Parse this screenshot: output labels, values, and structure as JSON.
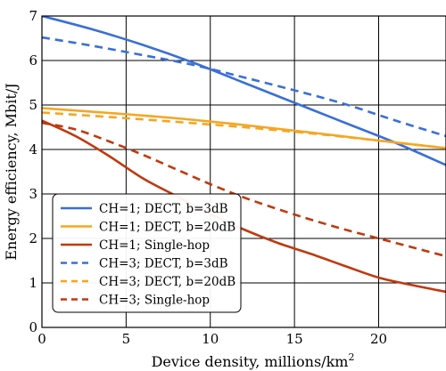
{
  "chart_data": {
    "type": "line",
    "title": "",
    "xlabel": "Device density, millions/km",
    "xlabel_sup": "2",
    "ylabel": "Energy efficiency, Mbit/J",
    "xlim": [
      0,
      24
    ],
    "ylim": [
      0,
      7
    ],
    "xticks": [
      0,
      5,
      10,
      15,
      20
    ],
    "yticks": [
      0,
      1,
      2,
      3,
      4,
      5,
      6,
      7
    ],
    "grid": true,
    "legend_position": "lower-left",
    "series": [
      {
        "name": "CH=1; DECT, b=3dB",
        "color": "#3a6fd8",
        "dash": "solid",
        "x": [
          0,
          3,
          6,
          9,
          12,
          15,
          18,
          21,
          24
        ],
        "y": [
          7.0,
          6.7,
          6.35,
          5.95,
          5.5,
          5.05,
          4.6,
          4.15,
          3.65
        ]
      },
      {
        "name": "CH=1; DECT, b=20dB",
        "color": "#f5a623",
        "dash": "solid",
        "x": [
          0,
          4,
          8,
          12,
          16,
          20,
          24
        ],
        "y": [
          4.93,
          4.82,
          4.7,
          4.55,
          4.38,
          4.2,
          4.03
        ]
      },
      {
        "name": "CH=1; Single-hop",
        "color": "#c0390f",
        "dash": "solid",
        "x": [
          0,
          2,
          4,
          6,
          8,
          10,
          12,
          14,
          16,
          18,
          20,
          22,
          24
        ],
        "y": [
          4.65,
          4.3,
          3.85,
          3.35,
          2.95,
          2.55,
          2.2,
          1.9,
          1.65,
          1.38,
          1.12,
          0.95,
          0.8
        ]
      },
      {
        "name": "CH=3; DECT, b=3dB",
        "color": "#3a6fd8",
        "dash": "dashed",
        "x": [
          0,
          3,
          6,
          9,
          12,
          15,
          18,
          21,
          24
        ],
        "y": [
          6.52,
          6.33,
          6.12,
          5.9,
          5.62,
          5.33,
          5.02,
          4.65,
          4.3
        ]
      },
      {
        "name": "CH=3; DECT, b=20dB",
        "color": "#f5a623",
        "dash": "dashed",
        "x": [
          0,
          4,
          8,
          12,
          16,
          20,
          24
        ],
        "y": [
          4.83,
          4.73,
          4.62,
          4.5,
          4.36,
          4.2,
          4.03
        ]
      },
      {
        "name": "CH=3; Single-hop",
        "color": "#c0390f",
        "dash": "dashed",
        "x": [
          0,
          2,
          4,
          6,
          8,
          10,
          12,
          14,
          16,
          18,
          20,
          22,
          24
        ],
        "y": [
          4.6,
          4.45,
          4.18,
          3.88,
          3.55,
          3.22,
          2.92,
          2.66,
          2.42,
          2.2,
          2.0,
          1.8,
          1.6
        ]
      }
    ]
  }
}
